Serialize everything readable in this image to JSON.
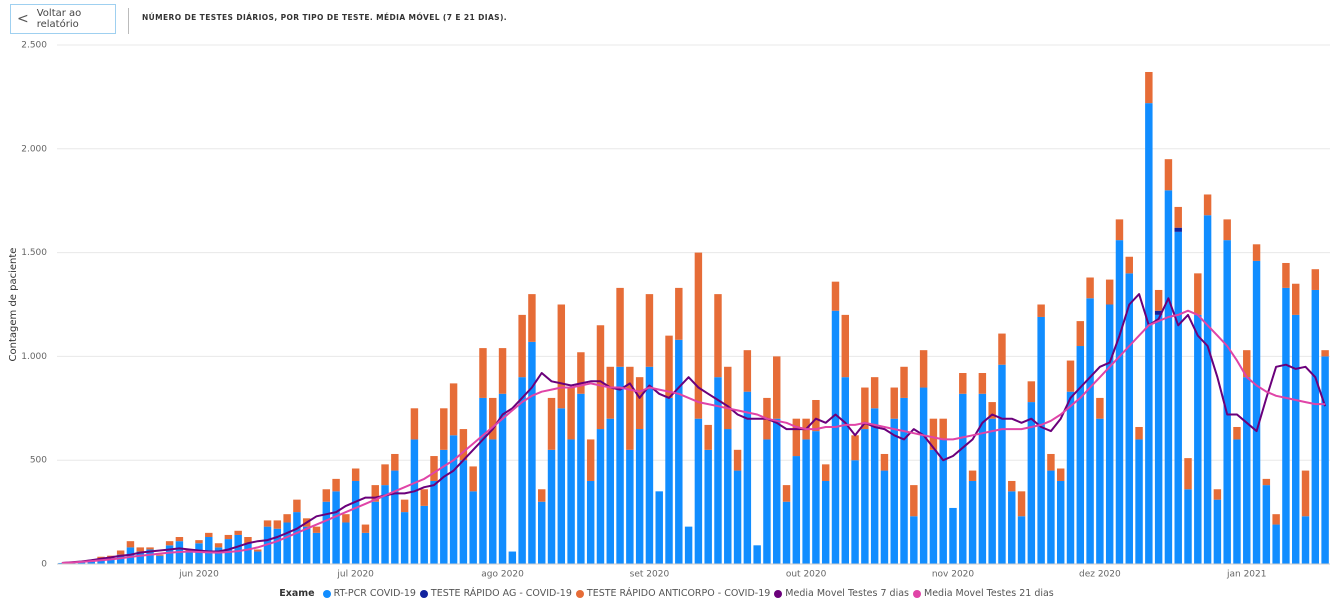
{
  "nav": {
    "back_button": "Voltar ao relatório"
  },
  "chart_data": {
    "type": "bar",
    "title": "NÚMERO DE TESTES DIÁRIOS, POR TIPO DE TESTE. MÉDIA MÓVEL (7 E 21 DIAS).",
    "y_label": "Contagem de paciente",
    "legend_title": "Exame",
    "legend": "bottom",
    "grid": true,
    "stacked": true,
    "ylim": [
      0,
      2500
    ],
    "yticks": [
      0,
      500,
      {
        "value": 1000,
        "label": "1.000"
      },
      {
        "value": 1500,
        "label": "1.500"
      },
      {
        "value": 2000,
        "label": "2.000"
      },
      {
        "value": 2500,
        "label": "2.500"
      }
    ],
    "categories": [
      null,
      null,
      null,
      null,
      null,
      null,
      null,
      null,
      null,
      null,
      null,
      null,
      null,
      null,
      "jun 2020",
      null,
      null,
      null,
      null,
      null,
      null,
      null,
      null,
      null,
      null,
      null,
      null,
      null,
      null,
      null,
      "jul 2020",
      null,
      null,
      null,
      null,
      null,
      null,
      null,
      null,
      null,
      null,
      null,
      null,
      null,
      null,
      "ago 2020",
      null,
      null,
      null,
      null,
      null,
      null,
      null,
      null,
      null,
      null,
      null,
      null,
      null,
      null,
      "set 2020",
      null,
      null,
      null,
      null,
      null,
      null,
      null,
      null,
      null,
      null,
      null,
      null,
      null,
      null,
      null,
      "out 2020",
      null,
      null,
      null,
      null,
      null,
      null,
      null,
      null,
      null,
      null,
      null,
      null,
      null,
      null,
      "nov 2020",
      null,
      null,
      null,
      null,
      null,
      null,
      null,
      null,
      null,
      null,
      null,
      null,
      null,
      null,
      "dez 2020",
      null,
      null,
      null,
      null,
      null,
      null,
      null,
      null,
      null,
      null,
      null,
      null,
      null,
      null,
      "jan 2021",
      null,
      null,
      null,
      null,
      null,
      null,
      null,
      null
    ],
    "series": [
      {
        "name": "RT-PCR COVID-19",
        "type": "bar",
        "color": "#118dff",
        "values": [
          5,
          8,
          10,
          15,
          25,
          30,
          45,
          80,
          60,
          70,
          40,
          90,
          110,
          60,
          100,
          130,
          80,
          120,
          140,
          100,
          60,
          180,
          170,
          200,
          250,
          180,
          150,
          300,
          350,
          200,
          400,
          150,
          300,
          380,
          450,
          250,
          600,
          280,
          400,
          550,
          620,
          500,
          350,
          800,
          600,
          820,
          60,
          900,
          1070,
          300,
          550,
          750,
          600,
          820,
          400,
          650,
          700,
          950,
          550,
          650,
          950,
          350,
          800,
          1080,
          180,
          700,
          550,
          900,
          650,
          450,
          830,
          90,
          600,
          700,
          300,
          520,
          600,
          640,
          400,
          1220,
          900,
          500,
          650,
          750,
          450,
          700,
          800,
          230,
          850,
          550,
          600,
          270,
          820,
          400,
          820,
          700,
          960,
          350,
          230,
          780,
          1190,
          450,
          400,
          830,
          1050,
          1280,
          700,
          1250,
          1560,
          1400,
          600,
          2220,
          1200,
          1800,
          1600,
          360,
          1200,
          1680,
          310,
          1560,
          600,
          900,
          1460,
          380,
          190,
          1330,
          1200,
          230,
          1320,
          1000
        ]
      },
      {
        "name": "TESTE RÁPIDO AG - COVID-19",
        "type": "bar",
        "color": "#12239e",
        "values": [
          0,
          0,
          0,
          0,
          0,
          0,
          0,
          0,
          0,
          0,
          0,
          0,
          0,
          0,
          0,
          0,
          0,
          0,
          0,
          0,
          0,
          0,
          0,
          0,
          0,
          0,
          0,
          0,
          0,
          0,
          0,
          0,
          0,
          0,
          0,
          0,
          0,
          0,
          0,
          0,
          0,
          0,
          0,
          0,
          0,
          0,
          0,
          0,
          0,
          0,
          0,
          0,
          0,
          0,
          0,
          0,
          0,
          0,
          0,
          0,
          0,
          0,
          0,
          0,
          0,
          0,
          0,
          0,
          0,
          0,
          0,
          0,
          0,
          0,
          0,
          0,
          0,
          0,
          0,
          0,
          0,
          0,
          0,
          0,
          0,
          0,
          0,
          0,
          0,
          0,
          0,
          0,
          0,
          0,
          0,
          0,
          0,
          0,
          0,
          0,
          0,
          0,
          0,
          0,
          0,
          0,
          0,
          0,
          0,
          0,
          0,
          0,
          20,
          0,
          20,
          0,
          0,
          0,
          0,
          0,
          0,
          0,
          0,
          0,
          0,
          0,
          0,
          0,
          0,
          0
        ]
      },
      {
        "name": "TESTE RÁPIDO ANTICORPO - COVID-19",
        "type": "bar",
        "color": "#e66c37",
        "values": [
          0,
          0,
          0,
          5,
          10,
          10,
          20,
          30,
          20,
          10,
          5,
          20,
          20,
          10,
          15,
          20,
          20,
          20,
          20,
          30,
          10,
          30,
          40,
          40,
          60,
          40,
          30,
          60,
          60,
          40,
          60,
          40,
          80,
          100,
          80,
          60,
          150,
          80,
          120,
          200,
          250,
          150,
          120,
          240,
          200,
          220,
          0,
          300,
          230,
          60,
          250,
          500,
          250,
          200,
          200,
          500,
          250,
          380,
          400,
          250,
          350,
          0,
          300,
          250,
          0,
          800,
          120,
          400,
          300,
          100,
          200,
          0,
          200,
          300,
          80,
          180,
          100,
          150,
          80,
          140,
          300,
          120,
          200,
          150,
          80,
          150,
          150,
          150,
          180,
          150,
          100,
          0,
          100,
          50,
          100,
          80,
          150,
          50,
          120,
          100,
          60,
          80,
          60,
          150,
          120,
          100,
          100,
          120,
          100,
          80,
          60,
          150,
          100,
          150,
          100,
          150,
          200,
          100,
          50,
          100,
          60,
          130,
          80,
          30,
          50,
          120,
          150,
          220,
          100,
          30
        ]
      },
      {
        "name": "Media Movel Testes 7 dias",
        "type": "line",
        "color": "#6b007b",
        "values": [
          5,
          8,
          12,
          18,
          25,
          32,
          40,
          45,
          55,
          60,
          65,
          70,
          75,
          70,
          65,
          60,
          60,
          70,
          85,
          100,
          110,
          115,
          130,
          150,
          170,
          200,
          230,
          240,
          250,
          280,
          300,
          320,
          320,
          330,
          340,
          340,
          350,
          370,
          380,
          420,
          450,
          500,
          550,
          600,
          650,
          720,
          750,
          800,
          850,
          920,
          880,
          870,
          860,
          870,
          880,
          880,
          850,
          840,
          870,
          800,
          860,
          820,
          800,
          850,
          900,
          850,
          820,
          790,
          760,
          720,
          700,
          700,
          700,
          680,
          650,
          650,
          650,
          700,
          680,
          720,
          680,
          620,
          680,
          660,
          650,
          620,
          600,
          650,
          620,
          560,
          500,
          520,
          560,
          600,
          680,
          720,
          700,
          700,
          680,
          700,
          660,
          640,
          700,
          800,
          850,
          900,
          950,
          970,
          1100,
          1250,
          1300,
          1150,
          1180,
          1280,
          1150,
          1200,
          1100,
          1050,
          900,
          720,
          720,
          680,
          640,
          800,
          950,
          960,
          940,
          950,
          900,
          760
        ]
      },
      {
        "name": "Media Movel Testes 21 dias",
        "type": "line",
        "color": "#e044a7",
        "values": [
          5,
          7,
          10,
          14,
          18,
          22,
          28,
          34,
          40,
          45,
          50,
          55,
          58,
          60,
          58,
          56,
          55,
          58,
          62,
          70,
          80,
          95,
          110,
          130,
          150,
          170,
          190,
          210,
          230,
          250,
          270,
          290,
          310,
          330,
          350,
          370,
          390,
          410,
          440,
          470,
          500,
          540,
          580,
          620,
          660,
          700,
          740,
          780,
          810,
          830,
          840,
          850,
          850,
          860,
          870,
          860,
          850,
          850,
          840,
          830,
          850,
          840,
          830,
          820,
          800,
          780,
          770,
          760,
          750,
          740,
          730,
          720,
          700,
          690,
          680,
          660,
          650,
          650,
          660,
          660,
          670,
          670,
          680,
          670,
          660,
          650,
          640,
          630,
          620,
          610,
          600,
          600,
          610,
          620,
          630,
          640,
          650,
          650,
          650,
          660,
          670,
          690,
          720,
          760,
          800,
          850,
          900,
          950,
          1000,
          1050,
          1100,
          1150,
          1170,
          1190,
          1200,
          1220,
          1200,
          1150,
          1100,
          1050,
          980,
          900,
          860,
          830,
          810,
          800,
          790,
          780,
          770,
          770
        ]
      }
    ]
  }
}
